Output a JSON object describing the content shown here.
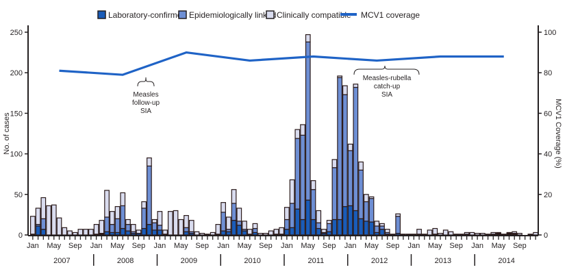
{
  "chart_data": {
    "type": "bar",
    "subtype": "stacked-bar-with-line",
    "title": "",
    "ylabel": "No. of cases",
    "y2label": "MCV1 Coverage (%)",
    "ylim": [
      0,
      250
    ],
    "y2lim": [
      0,
      100
    ],
    "yticks": [
      "0",
      "50",
      "100",
      "150",
      "200",
      "250"
    ],
    "y2ticks": [
      "0",
      "20",
      "40",
      "60",
      "80",
      "100"
    ],
    "month_tick_labels": [
      "Jan",
      "May",
      "Sep"
    ],
    "years": [
      "2007",
      "2008",
      "2009",
      "2010",
      "2011",
      "2012",
      "2013",
      "2014"
    ],
    "legend": [
      {
        "name": "Laboratory-confirmed",
        "color": "#1a5cb8",
        "kind": "box"
      },
      {
        "name": "Epidemiologically linked",
        "color": "#6e8fd4",
        "kind": "box"
      },
      {
        "name": "Clinically compatible",
        "color": "#d9dcef",
        "kind": "box"
      },
      {
        "name": "MCV1 coverage",
        "color": "#1f63c6",
        "kind": "line"
      }
    ],
    "legend_position": "top",
    "grid": false,
    "series": [
      {
        "name": "Laboratory-confirmed",
        "values": [
          1,
          11,
          7,
          0,
          0,
          0,
          0,
          0,
          0,
          0,
          0,
          0,
          1,
          1,
          4,
          3,
          3,
          8,
          5,
          2,
          2,
          8,
          13,
          6,
          6,
          1,
          0,
          0,
          0,
          4,
          2,
          0,
          0,
          0,
          0,
          1,
          5,
          4,
          18,
          12,
          5,
          1,
          3,
          0,
          0,
          0,
          1,
          1,
          7,
          9,
          32,
          19,
          43,
          19,
          8,
          2,
          4,
          19,
          19,
          35,
          36,
          30,
          20,
          17,
          16,
          3,
          7,
          1,
          0,
          2,
          0,
          0,
          0,
          1,
          0,
          0,
          1,
          0,
          0,
          0,
          0,
          0,
          1,
          0,
          0,
          0,
          0,
          1,
          1,
          0,
          1,
          1,
          0,
          0,
          0,
          0
        ]
      },
      {
        "name": "Epidemiologically linked",
        "values": [
          0,
          2,
          13,
          0,
          0,
          0,
          0,
          0,
          0,
          0,
          0,
          0,
          0,
          1,
          18,
          10,
          17,
          28,
          8,
          2,
          0,
          25,
          72,
          9,
          6,
          0,
          0,
          0,
          0,
          5,
          2,
          0,
          0,
          0,
          0,
          0,
          23,
          3,
          21,
          5,
          2,
          0,
          5,
          0,
          0,
          0,
          0,
          0,
          12,
          30,
          87,
          104,
          195,
          37,
          7,
          1,
          10,
          64,
          175,
          138,
          68,
          152,
          60,
          24,
          29,
          8,
          4,
          2,
          0,
          21,
          0,
          0,
          0,
          0,
          0,
          0,
          0,
          0,
          0,
          0,
          0,
          0,
          0,
          0,
          0,
          0,
          0,
          0,
          1,
          0,
          1,
          1,
          0,
          0,
          0,
          0
        ]
      },
      {
        "name": "Clinically compatible",
        "values": [
          22,
          20,
          26,
          36,
          37,
          21,
          9,
          5,
          3,
          7,
          7,
          7,
          12,
          16,
          33,
          16,
          15,
          16,
          6,
          9,
          4,
          8,
          10,
          4,
          17,
          5,
          29,
          30,
          19,
          15,
          14,
          4,
          2,
          1,
          3,
          12,
          12,
          15,
          17,
          16,
          10,
          6,
          6,
          2,
          2,
          5,
          6,
          8,
          15,
          29,
          11,
          13,
          9,
          11,
          15,
          4,
          4,
          10,
          2,
          11,
          8,
          4,
          10,
          9,
          2,
          6,
          3,
          4,
          1,
          3,
          1,
          1,
          1,
          6,
          1,
          6,
          7,
          2,
          6,
          4,
          1,
          1,
          2,
          3,
          2,
          2,
          1,
          2,
          1,
          1,
          1,
          2,
          2,
          0,
          1,
          3
        ]
      }
    ],
    "line_series": {
      "name": "MCV1 coverage",
      "axis": "right",
      "x": [
        "2007",
        "2008",
        "2009",
        "2010",
        "2011",
        "2012",
        "2013",
        "2014"
      ],
      "values": [
        81,
        79,
        90,
        86,
        88,
        86,
        88,
        88
      ]
    },
    "annotations": [
      {
        "lines": [
          "Measles",
          "follow-up",
          "SIA"
        ],
        "at": "2008-Oct"
      },
      {
        "lines": [
          "Measles-rubella",
          "catch-up",
          "SIA"
        ],
        "at": "2012-Jan to 2012-Dec"
      }
    ]
  }
}
